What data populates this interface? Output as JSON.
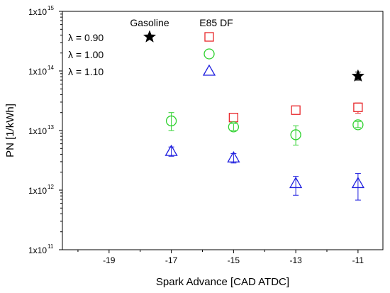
{
  "chart_data": {
    "type": "scatter",
    "xlabel": "Spark Advance [CAD ATDC]",
    "ylabel": "PN [1/kWh]",
    "xlim": [
      -20.5,
      -10.2
    ],
    "ylim": [
      100000000000.0,
      1000000000000000.0
    ],
    "yscale": "log",
    "xticks": [
      -19,
      -17,
      -15,
      -13,
      -11
    ],
    "xtick_labels": [
      "-19",
      "-17",
      "-15",
      "-13",
      "-11"
    ],
    "yticks": [
      {
        "value": 100000000000.0,
        "mantissa": "1x10",
        "exp": "11"
      },
      {
        "value": 1000000000000.0,
        "mantissa": "1x10",
        "exp": "12"
      },
      {
        "value": 10000000000000.0,
        "mantissa": "1x10",
        "exp": "13"
      },
      {
        "value": 100000000000000.0,
        "mantissa": "1x10",
        "exp": "14"
      },
      {
        "value": 1000000000000000.0,
        "mantissa": "1x10",
        "exp": "15"
      }
    ],
    "grid": false,
    "legend": {
      "placement": "top-left",
      "column_headers": [
        "Gasoline",
        "E85 DF"
      ],
      "row_labels": [
        "λ = 0.90",
        "λ = 1.00",
        "λ = 1.10"
      ]
    },
    "series": [
      {
        "group": "Gasoline",
        "lambda": "λ = 0.90",
        "marker": "star",
        "color": "#000000",
        "points": [
          {
            "x": -11,
            "y": 82000000000000.0,
            "err_low": 70000000000000.0,
            "err_high": 96000000000000.0
          }
        ]
      },
      {
        "group": "E85 DF",
        "lambda": "λ = 0.90",
        "marker": "square",
        "color": "#e8262a",
        "points": [
          {
            "x": -15,
            "y": 16500000000000.0,
            "err_low": 14500000000000.0,
            "err_high": 18500000000000.0
          },
          {
            "x": -13,
            "y": 22000000000000.0,
            "err_low": 20500000000000.0,
            "err_high": 23500000000000.0
          },
          {
            "x": -11,
            "y": 24500000000000.0,
            "err_low": 19500000000000.0,
            "err_high": 29000000000000.0
          }
        ]
      },
      {
        "group": "E85 DF",
        "lambda": "λ = 1.00",
        "marker": "circle",
        "color": "#2ed12e",
        "points": [
          {
            "x": -17,
            "y": 14500000000000.0,
            "err_low": 10000000000000.0,
            "err_high": 20000000000000.0
          },
          {
            "x": -15,
            "y": 11500000000000.0,
            "err_low": 10000000000000.0,
            "err_high": 13000000000000.0
          },
          {
            "x": -13,
            "y": 8500000000000.0,
            "err_low": 5700000000000.0,
            "err_high": 12000000000000.0
          },
          {
            "x": -11,
            "y": 12500000000000.0,
            "err_low": 11200000000000.0,
            "err_high": 14200000000000.0
          }
        ]
      },
      {
        "group": "E85 DF",
        "lambda": "λ = 1.10",
        "marker": "triangle",
        "color": "#1f1fdf",
        "points": [
          {
            "x": -17,
            "y": 4500000000000.0,
            "err_low": 3700000000000.0,
            "err_high": 5300000000000.0
          },
          {
            "x": -15,
            "y": 3500000000000.0,
            "err_low": 2850000000000.0,
            "err_high": 4100000000000.0
          },
          {
            "x": -13,
            "y": 1300000000000.0,
            "err_low": 820000000000.0,
            "err_high": 1700000000000.0
          },
          {
            "x": -11,
            "y": 1300000000000.0,
            "err_low": 680000000000.0,
            "err_high": 1900000000000.0
          }
        ]
      }
    ],
    "legend_markers": [
      {
        "group": "Gasoline",
        "lambda": "λ = 0.90",
        "marker": "star",
        "color": "#000000"
      },
      {
        "group": "E85 DF",
        "lambda": "λ = 0.90",
        "marker": "square",
        "color": "#e8262a"
      },
      {
        "group": "E85 DF",
        "lambda": "λ = 1.00",
        "marker": "circle",
        "color": "#2ed12e"
      },
      {
        "group": "E85 DF",
        "lambda": "λ = 1.10",
        "marker": "triangle",
        "color": "#1f1fdf"
      }
    ]
  }
}
